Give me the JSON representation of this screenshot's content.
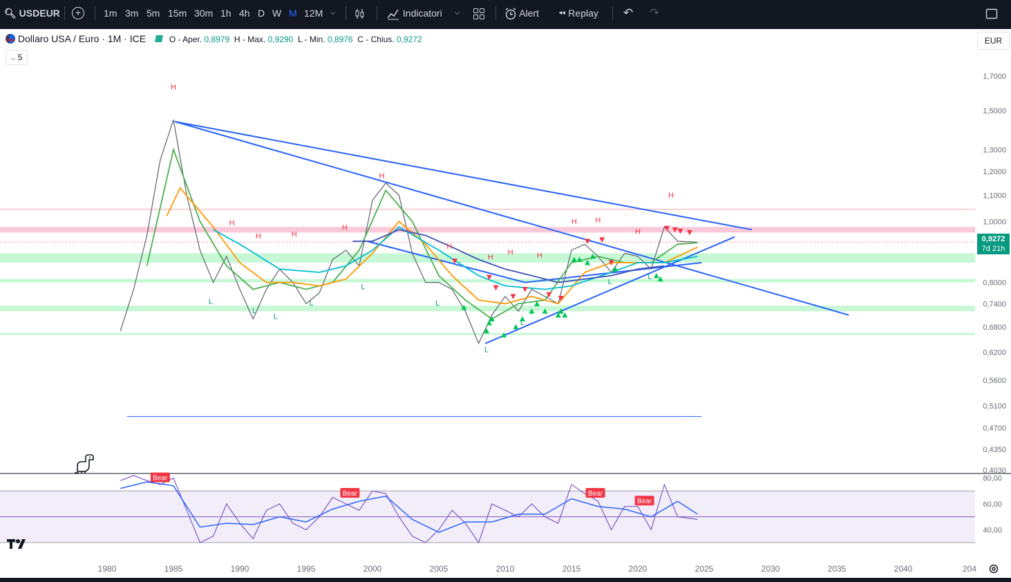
{
  "toolbar": {
    "symbol": "USDEUR",
    "add_symbol": "+",
    "intervals": [
      "1m",
      "3m",
      "5m",
      "15m",
      "30m",
      "1h",
      "4h",
      "D",
      "W",
      "M",
      "12M"
    ],
    "active_interval": "M",
    "chart_type_icon": "candles-icon",
    "indicators_label": "Indicatori",
    "templates_icon": "grid-icon",
    "alert_label": "Alert",
    "replay_label": "Replay",
    "undo_icon": "undo-icon",
    "redo_icon": "redo-icon",
    "fullscreen_icon": "fullscreen-icon"
  },
  "legend": {
    "title": "Dollaro USA / Euro · 1M · ICE",
    "o_label": "O - Aper.",
    "o_value": "0,8979",
    "h_label": "H - Max.",
    "h_value": "0,9290",
    "l_label": "L - Min.",
    "l_value": "0,8976",
    "c_label": "C - Chius.",
    "c_value": "0,9272",
    "collapse_label": "5"
  },
  "currency_button": "EUR",
  "price_tag": {
    "price": "0,9272",
    "countdown": "7d 21h"
  },
  "colors": {
    "up": "#089981",
    "down": "#f23645",
    "trend": "#2962ff",
    "ema_fast": "#4caf50",
    "ema_mid": "#ff9800",
    "ema_slow": "#00bcd4",
    "ema_long": "#3f51b5",
    "rsi": "#7e57c2",
    "resistance": "#f8bbd0",
    "support": "#b9f6ca"
  },
  "chart_data": [
    {
      "type": "candlestick",
      "title": "Dollaro USA / Euro · 1M · ICE",
      "y_scale": "log",
      "ylim": [
        0.403,
        1.8
      ],
      "y_ticks": [
        {
          "v": 1.7,
          "label": "1,7000"
        },
        {
          "v": 1.5,
          "label": "1,5000"
        },
        {
          "v": 1.3,
          "label": "1,3000"
        },
        {
          "v": 1.2,
          "label": "1,2000"
        },
        {
          "v": 1.1,
          "label": "1,1000"
        },
        {
          "v": 1.0,
          "label": "1,0000"
        },
        {
          "v": 0.8,
          "label": "0,8000"
        },
        {
          "v": 0.74,
          "label": "0,7400"
        },
        {
          "v": 0.68,
          "label": "0,6800"
        },
        {
          "v": 0.62,
          "label": "0,6200"
        },
        {
          "v": 0.56,
          "label": "0,5600"
        },
        {
          "v": 0.51,
          "label": "0,5100"
        },
        {
          "v": 0.47,
          "label": "0,4700"
        },
        {
          "v": 0.435,
          "label": "0,4350"
        },
        {
          "v": 0.403,
          "label": "0,4030"
        }
      ],
      "x_ticks": [
        "1980",
        "1985",
        "1990",
        "1995",
        "2000",
        "2005",
        "2010",
        "2015",
        "2020",
        "2025",
        "2030",
        "2035",
        "2040",
        "204"
      ],
      "series": [
        {
          "name": "price",
          "x": [
            1981,
            1982,
            1983,
            1984,
            1985,
            1986,
            1987,
            1988,
            1989,
            1990,
            1991,
            1992,
            1993,
            1994,
            1995,
            1996,
            1997,
            1998,
            1999,
            2000,
            2001,
            2002,
            2003,
            2004,
            2005,
            2006,
            2007,
            2008,
            2009,
            2010,
            2011,
            2012,
            2013,
            2014,
            2015,
            2016,
            2017,
            2018,
            2019,
            2020,
            2021,
            2022,
            2023,
            2024.5
          ],
          "y": [
            0.67,
            0.78,
            0.95,
            1.25,
            1.45,
            1.1,
            0.9,
            0.8,
            0.88,
            0.78,
            0.7,
            0.78,
            0.84,
            0.8,
            0.74,
            0.77,
            0.87,
            0.9,
            0.85,
            1.08,
            1.15,
            1.1,
            0.89,
            0.8,
            0.8,
            0.78,
            0.72,
            0.64,
            0.71,
            0.76,
            0.72,
            0.78,
            0.76,
            0.74,
            0.9,
            0.92,
            0.88,
            0.83,
            0.89,
            0.88,
            0.84,
            0.98,
            0.93,
            0.927
          ]
        },
        {
          "name": "ema-fast",
          "x": [
            1983,
            1985,
            1987,
            1989,
            1991,
            1993,
            1995,
            1997,
            1999,
            2001,
            2003,
            2005,
            2007,
            2009,
            2011,
            2013,
            2015,
            2017,
            2019,
            2021,
            2023,
            2024.5
          ],
          "y": [
            0.85,
            1.3,
            1.0,
            0.85,
            0.78,
            0.8,
            0.78,
            0.8,
            0.9,
            1.12,
            1.0,
            0.82,
            0.75,
            0.7,
            0.74,
            0.75,
            0.86,
            0.88,
            0.86,
            0.86,
            0.92,
            0.925
          ]
        },
        {
          "name": "ema-mid",
          "x": [
            1984.5,
            1985.5,
            1988,
            1990,
            1992,
            1994,
            1996,
            1998,
            2000,
            2002,
            2004,
            2006,
            2008,
            2010,
            2012,
            2014,
            2016,
            2018,
            2020,
            2022,
            2024.5
          ],
          "y": [
            1.02,
            1.13,
            0.98,
            0.86,
            0.8,
            0.8,
            0.79,
            0.81,
            0.89,
            1.0,
            0.92,
            0.82,
            0.75,
            0.74,
            0.76,
            0.74,
            0.83,
            0.86,
            0.86,
            0.86,
            0.91
          ]
        },
        {
          "name": "ema-slow",
          "x": [
            1988,
            1990,
            1993,
            1996,
            1998,
            2000,
            2002,
            2005,
            2008,
            2010,
            2013,
            2015,
            2018,
            2020,
            2022,
            2024.5
          ],
          "y": [
            0.97,
            0.92,
            0.84,
            0.83,
            0.85,
            0.9,
            0.98,
            0.9,
            0.82,
            0.79,
            0.78,
            0.79,
            0.83,
            0.86,
            0.86,
            0.88
          ]
        },
        {
          "name": "ema-long",
          "x": [
            1998.5,
            2000,
            2002,
            2004,
            2006,
            2008,
            2010,
            2012,
            2014,
            2016,
            2018,
            2020,
            2022
          ],
          "y": [
            0.93,
            0.93,
            0.97,
            0.95,
            0.91,
            0.87,
            0.84,
            0.82,
            0.8,
            0.81,
            0.82,
            0.84,
            0.85
          ]
        }
      ],
      "trendlines": [
        {
          "x": [
            1985.1,
            2028.6
          ],
          "y": [
            1.44,
            0.97
          ]
        },
        {
          "x": [
            1985.1,
            2035.9
          ],
          "y": [
            1.44,
            0.71
          ]
        },
        {
          "x": [
            1999.6,
            2011.5,
            2024.8
          ],
          "y": [
            0.93,
            0.8,
            0.86
          ]
        },
        {
          "x": [
            2008.5,
            2027.3
          ],
          "y": [
            0.64,
            0.945
          ]
        },
        {
          "x": [
            1981.5,
            2024.8
          ],
          "y": [
            0.49,
            0.49
          ]
        }
      ],
      "zones": [
        {
          "type": "resistance",
          "y": [
            0.96,
            0.98
          ]
        },
        {
          "type": "resistance-line",
          "y": [
            1.045,
            1.045
          ]
        },
        {
          "type": "support",
          "y": [
            0.86,
            0.89
          ]
        },
        {
          "type": "support",
          "y": [
            0.8,
            0.81
          ]
        },
        {
          "type": "support",
          "y": [
            0.72,
            0.735
          ]
        },
        {
          "type": "support",
          "y": [
            0.66,
            0.665
          ]
        }
      ],
      "pivot_labels": [
        {
          "text": "H",
          "x": 1985.0,
          "y": 1.62
        },
        {
          "text": "H",
          "x": 2000.7,
          "y": 1.17
        },
        {
          "text": "H",
          "x": 1989.4,
          "y": 0.985
        },
        {
          "text": "H",
          "x": 1991.4,
          "y": 0.94
        },
        {
          "text": "H",
          "x": 1994.1,
          "y": 0.945
        },
        {
          "text": "H",
          "x": 1997.9,
          "y": 0.97
        },
        {
          "text": "H",
          "x": 2005.8,
          "y": 0.905
        },
        {
          "text": "H",
          "x": 2008.9,
          "y": 0.87
        },
        {
          "text": "H",
          "x": 2010.4,
          "y": 0.885
        },
        {
          "text": "H",
          "x": 2012.6,
          "y": 0.875
        },
        {
          "text": "H",
          "x": 2015.2,
          "y": 0.99
        },
        {
          "text": "H",
          "x": 2017.0,
          "y": 0.995
        },
        {
          "text": "H",
          "x": 2020.0,
          "y": 0.955
        },
        {
          "text": "H",
          "x": 2022.5,
          "y": 1.09
        },
        {
          "text": "L",
          "x": 1987.8,
          "y": 0.74
        },
        {
          "text": "L",
          "x": 1991.1,
          "y": 0.715
        },
        {
          "text": "L",
          "x": 1992.7,
          "y": 0.7
        },
        {
          "text": "L",
          "x": 1995.4,
          "y": 0.735
        },
        {
          "text": "L",
          "x": 1999.3,
          "y": 0.78
        },
        {
          "text": "L",
          "x": 2004.9,
          "y": 0.735
        },
        {
          "text": "L",
          "x": 2008.6,
          "y": 0.62
        },
        {
          "text": "L",
          "x": 2011.3,
          "y": 0.685
        },
        {
          "text": "L",
          "x": 2017.9,
          "y": 0.795
        },
        {
          "text": "L",
          "x": 2020.9,
          "y": 0.81
        }
      ],
      "signals_up": [
        {
          "x": 2006.9,
          "y": 0.73
        },
        {
          "x": 2008.6,
          "y": 0.67
        },
        {
          "x": 2008.8,
          "y": 0.69
        },
        {
          "x": 2009.0,
          "y": 0.7
        },
        {
          "x": 2009.9,
          "y": 0.66
        },
        {
          "x": 2010.8,
          "y": 0.68
        },
        {
          "x": 2011.3,
          "y": 0.7
        },
        {
          "x": 2012.0,
          "y": 0.72
        },
        {
          "x": 2012.4,
          "y": 0.74
        },
        {
          "x": 2013.0,
          "y": 0.72
        },
        {
          "x": 2014.0,
          "y": 0.71
        },
        {
          "x": 2014.2,
          "y": 0.72
        },
        {
          "x": 2014.5,
          "y": 0.71
        },
        {
          "x": 2015.2,
          "y": 0.87
        },
        {
          "x": 2015.6,
          "y": 0.87
        },
        {
          "x": 2016.2,
          "y": 0.86
        },
        {
          "x": 2016.6,
          "y": 0.88
        },
        {
          "x": 2018.3,
          "y": 0.84
        },
        {
          "x": 2021.4,
          "y": 0.82
        },
        {
          "x": 2021.7,
          "y": 0.81
        }
      ],
      "signals_down": [
        {
          "x": 2006.2,
          "y": 0.865
        },
        {
          "x": 2008.8,
          "y": 0.815
        },
        {
          "x": 2009.3,
          "y": 0.785
        },
        {
          "x": 2010.6,
          "y": 0.76
        },
        {
          "x": 2011.5,
          "y": 0.78
        },
        {
          "x": 2013.3,
          "y": 0.765
        },
        {
          "x": 2014.2,
          "y": 0.755
        },
        {
          "x": 2016.2,
          "y": 0.93
        },
        {
          "x": 2017.3,
          "y": 0.935
        },
        {
          "x": 2018.0,
          "y": 0.86
        },
        {
          "x": 2022.2,
          "y": 0.975
        },
        {
          "x": 2022.8,
          "y": 0.97
        },
        {
          "x": 2023.2,
          "y": 0.965
        },
        {
          "x": 2023.9,
          "y": 0.96
        }
      ]
    },
    {
      "type": "line",
      "ylim": [
        22,
        83
      ],
      "y_ticks": [
        {
          "v": 80,
          "label": "80,00"
        },
        {
          "v": 60,
          "label": "60,00"
        },
        {
          "v": 40,
          "label": "40,00"
        }
      ],
      "bands": [
        30,
        50,
        70
      ],
      "series": [
        {
          "name": "rsi",
          "x": [
            1981,
            1982,
            1983,
            1984,
            1985,
            1986,
            1987,
            1988,
            1989,
            1990,
            1991,
            1992,
            1993,
            1994,
            1995,
            1996,
            1997,
            1998,
            1999,
            2000,
            2001,
            2002,
            2003,
            2004,
            2005,
            2006,
            2007,
            2008,
            2009,
            2010,
            2011,
            2012,
            2013,
            2014,
            2015,
            2016,
            2017,
            2018,
            2019,
            2020,
            2021,
            2022,
            2023,
            2024.5
          ],
          "y": [
            78,
            82,
            78,
            75,
            80,
            55,
            30,
            35,
            60,
            45,
            33,
            55,
            60,
            45,
            40,
            50,
            65,
            60,
            55,
            70,
            68,
            50,
            35,
            30,
            40,
            55,
            45,
            30,
            60,
            55,
            50,
            60,
            50,
            45,
            75,
            68,
            62,
            40,
            58,
            58,
            40,
            75,
            50,
            48
          ]
        },
        {
          "name": "rsi-ma",
          "x": [
            1981,
            1983,
            1985,
            1987,
            1989,
            1991,
            1993,
            1995,
            1997,
            1999,
            2001,
            2003,
            2005,
            2007,
            2009,
            2011,
            2013,
            2015,
            2017,
            2019,
            2021,
            2023,
            2024.5
          ],
          "y": [
            72,
            77,
            74,
            42,
            45,
            44,
            50,
            46,
            56,
            62,
            66,
            48,
            38,
            46,
            46,
            52,
            52,
            64,
            58,
            56,
            50,
            62,
            52
          ]
        }
      ],
      "labels": [
        {
          "text": "Bear",
          "x": 1984.0,
          "y": 80
        },
        {
          "text": "Bear",
          "x": 1998.3,
          "y": 68
        },
        {
          "text": "Bear",
          "x": 2016.8,
          "y": 68
        },
        {
          "text": "Bear",
          "x": 2020.5,
          "y": 62
        }
      ]
    }
  ]
}
